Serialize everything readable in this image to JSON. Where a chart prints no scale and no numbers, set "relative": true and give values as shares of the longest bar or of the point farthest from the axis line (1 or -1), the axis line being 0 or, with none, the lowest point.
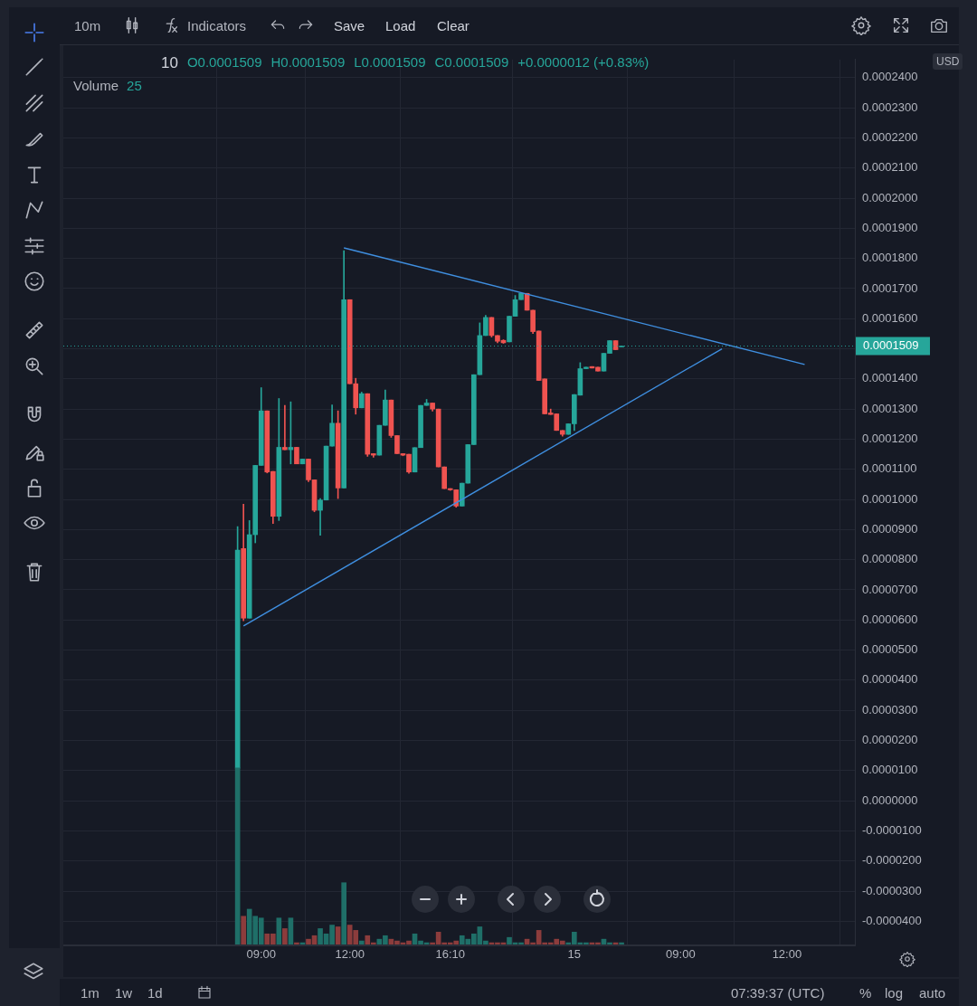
{
  "chart_data": [
    {
      "type": "candlestick",
      "annotations": [
        "10",
        "O0.0001509",
        "H0.0001509",
        "L0.0001509",
        "C0.0001509",
        "+0.0000012 (+0.83%)"
      ],
      "categories": [
        null,
        null,
        null,
        null,
        null,
        null,
        null,
        null,
        null,
        null,
        null,
        null,
        null,
        null,
        null,
        null,
        null,
        null,
        null,
        null,
        null,
        null,
        null,
        null,
        null,
        null,
        null,
        null,
        null,
        null,
        null,
        null,
        null,
        "09:00",
        null,
        null,
        null,
        null,
        null,
        null,
        null,
        null,
        null,
        null,
        null,
        null,
        null,
        null,
        "12:00",
        null,
        null,
        null,
        null,
        null,
        null,
        null,
        null,
        null,
        null,
        null,
        null,
        null,
        null,
        null,
        null,
        "16:10",
        null,
        null,
        null,
        null,
        null,
        null,
        null,
        null,
        null,
        null,
        null,
        null,
        null,
        null,
        null,
        null,
        null,
        null,
        null,
        null,
        "15",
        null,
        null,
        null,
        null,
        null,
        null,
        null,
        null,
        null,
        null,
        null,
        null,
        null,
        null,
        null,
        null,
        null,
        "09:00",
        null,
        null,
        null,
        null,
        null,
        null,
        null,
        null,
        null,
        null,
        null,
        null,
        null,
        null,
        null,
        null,
        null,
        "12:00",
        null,
        null,
        null,
        null,
        null,
        null,
        null,
        null,
        null,
        null,
        null
      ],
      "ohlc": [
        null,
        null,
        null,
        null,
        null,
        null,
        null,
        null,
        null,
        null,
        null,
        null,
        null,
        null,
        null,
        null,
        null,
        null,
        null,
        null,
        null,
        null,
        null,
        null,
        null,
        null,
        null,
        null,
        null,
        [
          1.08e-05,
          9.1e-05,
          1.08e-05,
          8.32e-05
        ],
        [
          8.37e-05,
          9.84e-05,
          5.97e-05,
          6.06e-05
        ],
        [
          6.06e-05,
          9.3e-05,
          6.06e-05,
          8.83e-05
        ],
        [
          8.83e-05,
          0.0001113,
          8.56e-05,
          0.0001113
        ],
        [
          0.0001113,
          0.0001371,
          0.0001113,
          0.0001294
        ],
        [
          0.0001294,
          0.0001294,
          0.0001088,
          0.0001091
        ],
        [
          0.0001093,
          0.0001093,
          9.2e-05,
          9.44e-05
        ],
        [
          9.44e-05,
          0.0001335,
          9.3e-05,
          0.0001173
        ],
        [
          0.0001173,
          0.0001312,
          0.0001165,
          0.0001165
        ],
        [
          0.0001165,
          0.0001324,
          0.0001118,
          0.0001173
        ],
        [
          0.0001173,
          0.0001173,
          0.0001118,
          0.0001118
        ],
        [
          0.0001118,
          0.0001134,
          0.0001118,
          0.0001134
        ],
        [
          0.0001134,
          0.0001134,
          0.0001059,
          0.0001065
        ],
        [
          0.0001065,
          0.0001065,
          9.59e-05,
          9.64e-05
        ],
        [
          9.64e-05,
          0.0001003,
          8.81e-05,
          9.98e-05
        ],
        [
          9.98e-05,
          0.0001177,
          9.98e-05,
          0.0001177
        ],
        [
          0.0001177,
          0.0001314,
          0.0001177,
          0.0001253
        ],
        [
          0.0001253,
          0.0001294,
          0.0001003,
          0.0001038
        ],
        [
          0.0001038,
          0.0001826,
          0.0001038,
          0.0001663
        ],
        [
          0.0001663,
          0.0001663,
          0.0001384,
          0.0001384
        ],
        [
          0.0001384,
          0.0001402,
          0.0001283,
          0.0001304
        ],
        [
          0.0001304,
          0.0001356,
          0.0001304,
          0.0001351
        ],
        [
          0.0001351,
          0.0001351,
          0.0001143,
          0.000115
        ],
        [
          0.0001152,
          0.0001152,
          0.000114,
          0.0001147
        ],
        [
          0.0001147,
          0.0001246,
          0.0001147,
          0.0001246
        ],
        [
          0.0001246,
          0.0001363,
          0.0001246,
          0.000133
        ],
        [
          0.000133,
          0.000133,
          0.0001206,
          0.0001212
        ],
        [
          0.0001212,
          0.0001212,
          0.0001152,
          0.0001152
        ],
        [
          0.0001152,
          0.0001152,
          0.0001145,
          0.0001147
        ],
        [
          0.000115,
          0.000115,
          0.0001087,
          0.0001091
        ],
        [
          0.0001091,
          0.0001172,
          0.0001091,
          0.0001172
        ],
        [
          0.0001172,
          0.0001312,
          0.0001172,
          0.0001312
        ],
        [
          0.0001312,
          0.0001332,
          0.0001312,
          0.000132
        ],
        [
          0.000132,
          0.000132,
          0.0001293,
          0.00013
        ],
        [
          0.00013,
          0.00013,
          0.0001108,
          0.0001108
        ],
        [
          0.0001108,
          0.0001108,
          0.0001036,
          0.0001036
        ],
        [
          0.0001036,
          0.0001036,
          0.000103,
          0.0001032
        ],
        [
          0.0001032,
          0.0001032,
          9.74e-05,
          9.78e-05
        ],
        [
          9.78e-05,
          0.0001054,
          9.78e-05,
          0.0001054
        ],
        [
          0.0001054,
          0.0001182,
          0.0001054,
          0.0001182
        ],
        [
          0.0001182,
          0.0001414,
          0.0001182,
          0.0001414
        ],
        [
          0.0001414,
          0.0001586,
          0.0001414,
          0.0001544
        ],
        [
          0.0001544,
          0.0001611,
          0.0001544,
          0.0001604
        ],
        [
          0.0001604,
          0.0001604,
          0.0001539,
          0.0001544
        ],
        [
          0.0001544,
          0.0001544,
          0.000152,
          0.0001525
        ],
        [
          0.0001528,
          0.000153,
          0.0001518,
          0.000152
        ],
        [
          0.0001523,
          0.0001608,
          0.0001523,
          0.0001608
        ],
        [
          0.0001608,
          0.0001677,
          0.0001608,
          0.0001663
        ],
        [
          0.0001663,
          0.0001684,
          0.0001663,
          0.0001684
        ],
        [
          0.0001684,
          0.0001684,
          0.0001628,
          0.0001628
        ],
        [
          0.0001628,
          0.0001628,
          0.0001551,
          0.0001557
        ],
        [
          0.0001559,
          0.0001559,
          0.0001395,
          0.0001395
        ],
        [
          0.00014,
          0.00014,
          0.0001284,
          0.0001284
        ],
        [
          0.0001287,
          0.00013,
          0.0001282,
          0.0001282
        ],
        [
          0.0001284,
          0.0001284,
          0.0001229,
          0.0001229
        ],
        [
          0.0001229,
          0.0001229,
          0.000121,
          0.0001216
        ],
        [
          0.0001216,
          0.0001251,
          0.0001216,
          0.0001251
        ],
        [
          0.0001251,
          0.0001348,
          0.0001229,
          0.0001348
        ],
        [
          0.0001346,
          0.0001454,
          0.0001346,
          0.0001434
        ],
        [
          0.0001434,
          0.0001439,
          0.0001434,
          0.0001439
        ],
        [
          0.0001441,
          0.0001441,
          0.0001436,
          0.0001436
        ],
        [
          0.0001439,
          0.0001439,
          0.0001426,
          0.0001426
        ],
        [
          0.0001426,
          0.0001485,
          0.0001426,
          0.0001485
        ],
        [
          0.0001485,
          0.0001527,
          0.0001485,
          0.0001527
        ],
        [
          0.0001527,
          0.0001527,
          0.0001497,
          0.0001497
        ],
        [
          0.0001509,
          0.0001509,
          0.0001509,
          0.0001509
        ],
        null,
        null,
        null,
        null,
        null,
        null,
        null,
        null,
        null,
        null,
        null,
        null,
        null,
        null,
        null,
        null,
        null,
        null,
        null,
        null,
        null,
        null,
        null,
        null,
        null,
        null,
        null,
        null,
        null,
        null,
        null,
        null,
        null,
        null,
        null,
        null,
        null,
        null,
        null
      ],
      "colors": [
        null,
        null,
        null,
        null,
        null,
        null,
        null,
        null,
        null,
        null,
        null,
        null,
        null,
        null,
        null,
        null,
        null,
        null,
        null,
        null,
        null,
        null,
        null,
        null,
        null,
        null,
        null,
        null,
        null,
        "#26a69a",
        "#ef5350",
        "#26a69a",
        "#26a69a",
        "#26a69a",
        "#ef5350",
        "#ef5350",
        "#26a69a",
        "#ef5350",
        "#26a69a",
        "#ef5350",
        "#26a69a",
        "#ef5350",
        "#ef5350",
        "#26a69a",
        "#26a69a",
        "#26a69a",
        "#ef5350",
        "#26a69a",
        "#ef5350",
        "#ef5350",
        "#26a69a",
        "#ef5350",
        "#ef5350",
        "#26a69a",
        "#26a69a",
        "#ef5350",
        "#ef5350",
        "#ef5350",
        "#ef5350",
        "#26a69a",
        "#26a69a",
        "#26a69a",
        "#ef5350",
        "#ef5350",
        "#ef5350",
        "#ef5350",
        "#ef5350",
        "#26a69a",
        "#26a69a",
        "#26a69a",
        "#26a69a",
        "#26a69a",
        "#ef5350",
        "#ef5350",
        "#ef5350",
        "#26a69a",
        "#26a69a",
        "#26a69a",
        "#ef5350",
        "#ef5350",
        "#ef5350",
        "#ef5350",
        "#ef5350",
        "#ef5350",
        "#ef5350",
        "#26a69a",
        "#26a69a",
        "#26a69a",
        "#26a69a",
        "#ef5350",
        "#ef5350",
        "#26a69a",
        "#26a69a",
        "#ef5350",
        "#26a69a",
        null,
        null,
        null,
        null,
        null,
        null,
        null,
        null,
        null,
        null,
        null,
        null,
        null,
        null,
        null,
        null,
        null,
        null,
        null,
        null,
        null,
        null,
        null,
        null,
        null,
        null,
        null,
        null,
        null,
        null,
        null,
        null,
        null,
        null,
        null,
        null,
        null,
        null,
        null
      ],
      "series": [
        {
          "type": "line",
          "color": "#3f8fe0",
          "values": [
            null,
            null,
            null,
            null,
            null,
            null,
            null,
            null,
            null,
            null,
            null,
            null,
            null,
            null,
            null,
            null,
            null,
            null,
            null,
            null,
            null,
            null,
            null,
            null,
            null,
            null,
            null,
            null,
            null,
            null,
            null,
            null,
            null,
            null,
            null,
            null,
            null,
            null,
            null,
            null,
            null,
            null,
            null,
            null,
            null,
            null,
            null,
            0.0001835,
            null,
            null,
            null,
            null,
            null,
            null,
            null,
            null,
            null,
            null,
            null,
            null,
            null,
            null,
            null,
            null,
            null,
            null,
            null,
            null,
            null,
            null,
            null,
            null,
            null,
            null,
            null,
            null,
            null,
            null,
            null,
            null,
            null,
            null,
            null,
            null,
            null,
            null,
            null,
            null,
            null,
            null,
            null,
            null,
            null,
            null,
            null,
            null,
            null,
            null,
            null,
            null,
            null,
            null,
            null,
            null,
            null,
            null,
            null,
            null,
            null,
            null,
            null,
            null,
            null,
            null,
            null,
            null,
            null,
            null,
            null,
            null,
            null,
            null,
            null,
            null,
            null,
            0.0001448,
            null,
            null,
            null,
            null,
            null,
            null,
            null,
            null
          ]
        },
        {
          "type": "line",
          "color": "#3f8fe0",
          "values": [
            null,
            null,
            null,
            null,
            null,
            null,
            null,
            null,
            null,
            null,
            null,
            null,
            null,
            null,
            null,
            null,
            null,
            null,
            null,
            null,
            null,
            null,
            null,
            null,
            null,
            null,
            null,
            null,
            null,
            null,
            5.8e-05,
            null,
            null,
            null,
            null,
            null,
            null,
            null,
            null,
            null,
            null,
            null,
            null,
            null,
            null,
            null,
            null,
            null,
            null,
            null,
            null,
            null,
            null,
            null,
            null,
            null,
            null,
            null,
            null,
            null,
            null,
            null,
            null,
            null,
            null,
            null,
            null,
            null,
            null,
            null,
            null,
            null,
            null,
            null,
            null,
            null,
            null,
            null,
            null,
            null,
            null,
            null,
            null,
            null,
            null,
            null,
            null,
            null,
            null,
            null,
            null,
            null,
            null,
            null,
            null,
            null,
            null,
            null,
            null,
            null,
            null,
            null,
            null,
            null,
            null,
            null,
            null,
            null,
            null,
            null,
            null,
            0.00015,
            null,
            null,
            null,
            null,
            null,
            null,
            null,
            null,
            null,
            null,
            null,
            null,
            null,
            null,
            null,
            null,
            null,
            null,
            null,
            null,
            null,
            null
          ]
        }
      ],
      "ylim": [
        -4.8e-05,
        0.000246
      ],
      "yticks": [
        {
          "value": -4e-05,
          "label": "-0.0000400"
        },
        {
          "value": -3e-05,
          "label": "-0.0000300"
        },
        {
          "value": -2e-05,
          "label": "-0.0000200"
        },
        {
          "value": -1e-05,
          "label": "-0.0000100"
        },
        {
          "value": 0,
          "label": "0.0000000"
        },
        {
          "value": 1e-05,
          "label": "0.0000100"
        },
        {
          "value": 2e-05,
          "label": "0.0000200"
        },
        {
          "value": 3e-05,
          "label": "0.0000300"
        },
        {
          "value": 4e-05,
          "label": "0.0000400"
        },
        {
          "value": 5e-05,
          "label": "0.0000500"
        },
        {
          "value": 6e-05,
          "label": "0.0000600"
        },
        {
          "value": 7e-05,
          "label": "0.0000700"
        },
        {
          "value": 8e-05,
          "label": "0.0000800"
        },
        {
          "value": 9e-05,
          "label": "0.0000900"
        },
        {
          "value": 0.0001,
          "label": "0.0001000"
        },
        {
          "value": 0.00011,
          "label": "0.0001100"
        },
        {
          "value": 0.00012,
          "label": "0.0001200"
        },
        {
          "value": 0.00013,
          "label": "0.0001300"
        },
        {
          "value": 0.00014,
          "label": "0.0001400"
        },
        {
          "value": 0.00015,
          "label": null
        },
        {
          "value": 0.00016,
          "label": "0.0001600"
        },
        {
          "value": 0.00017,
          "label": "0.0001700"
        },
        {
          "value": 0.00018,
          "label": "0.0001800"
        },
        {
          "value": 0.00019,
          "label": "0.0001900"
        },
        {
          "value": 0.0002,
          "label": "0.0002000"
        },
        {
          "value": 0.00021,
          "label": "0.0002100"
        },
        {
          "value": 0.00022,
          "label": "0.0002200"
        },
        {
          "value": 0.00023,
          "label": "0.0002300"
        },
        {
          "value": 0.00024,
          "label": "0.0002400"
        }
      ],
      "grid": true,
      "ref_lines": [
        {
          "axis": "y",
          "value": 0.0001509,
          "label": "0.0001509",
          "color": "#26a69a",
          "line_style": "dotted"
        }
      ]
    },
    {
      "type": "bar",
      "title": "Volume",
      "annotations": [
        "25"
      ],
      "relative": true,
      "categories": [
        null,
        null,
        null,
        null,
        null,
        null,
        null,
        null,
        null,
        null,
        null,
        null,
        null,
        null,
        null,
        null,
        null,
        null,
        null,
        null,
        null,
        null,
        null,
        null,
        null,
        null,
        null,
        null,
        null,
        null,
        null,
        null,
        null,
        null,
        null,
        null,
        null,
        null,
        null,
        null,
        null,
        null,
        null,
        null,
        null,
        null,
        null,
        null,
        null,
        null,
        null,
        null,
        null,
        null,
        null,
        null,
        null,
        null,
        null,
        null,
        null,
        null,
        null,
        null,
        null,
        null,
        null,
        null,
        null,
        null,
        null,
        null,
        null,
        null,
        null,
        null,
        null,
        null,
        null,
        null,
        null,
        null,
        null,
        null,
        null,
        null,
        null,
        null,
        null,
        null,
        null,
        null,
        null,
        null,
        null,
        null,
        null,
        null,
        null,
        null,
        null,
        null,
        null,
        null,
        null,
        null,
        null,
        null,
        null,
        null,
        null,
        null,
        null,
        null,
        null,
        null,
        null,
        null,
        null,
        null,
        null,
        null,
        null,
        null,
        null,
        null,
        null,
        null,
        null,
        null,
        null,
        null,
        null,
        null
      ],
      "values": [
        null,
        null,
        null,
        null,
        null,
        null,
        null,
        null,
        null,
        null,
        null,
        null,
        null,
        null,
        null,
        null,
        null,
        null,
        null,
        null,
        null,
        null,
        null,
        null,
        null,
        null,
        null,
        null,
        null,
        1,
        0.16,
        0.2,
        0.16,
        0.15,
        0.06,
        0.06,
        0.15,
        0.09,
        0.15,
        0.01,
        0.01,
        0.03,
        0.05,
        0.09,
        0.06,
        0.11,
        0.1,
        0.35,
        0.11,
        0.08,
        0.02,
        0.05,
        0.01,
        0.03,
        0.05,
        0.03,
        0.02,
        0.01,
        0.02,
        0.06,
        0.02,
        0.01,
        0.01,
        0.07,
        0.01,
        0.01,
        0.02,
        0.05,
        0.03,
        0.06,
        0.1,
        0.02,
        0.01,
        0.01,
        0.01,
        0.04,
        0.01,
        0.01,
        0.03,
        0.01,
        0.08,
        0.01,
        0.01,
        0.03,
        0.02,
        0.01,
        0.07,
        0.01,
        0.01,
        0.01,
        0.01,
        0.03,
        0.01,
        0.01,
        0.01,
        null,
        null,
        null,
        null,
        null,
        null,
        null,
        null,
        null,
        null,
        null,
        null,
        null,
        null,
        null,
        null,
        null,
        null,
        null,
        null,
        null,
        null,
        null,
        null,
        null,
        null,
        null,
        null,
        null,
        null,
        null,
        null,
        null,
        null,
        null,
        null,
        null,
        null,
        null
      ],
      "colors": [
        null,
        null,
        null,
        null,
        null,
        null,
        null,
        null,
        null,
        null,
        null,
        null,
        null,
        null,
        null,
        null,
        null,
        null,
        null,
        null,
        null,
        null,
        null,
        null,
        null,
        null,
        null,
        null,
        null,
        "#1f6f68",
        "#8c3c3c",
        "#1f6f68",
        "#1f6f68",
        "#1f6f68",
        "#8c3c3c",
        "#8c3c3c",
        "#1f6f68",
        "#8c3c3c",
        "#1f6f68",
        "#8c3c3c",
        "#1f6f68",
        "#8c3c3c",
        "#8c3c3c",
        "#1f6f68",
        "#1f6f68",
        "#1f6f68",
        "#8c3c3c",
        "#1f6f68",
        "#8c3c3c",
        "#8c3c3c",
        "#1f6f68",
        "#8c3c3c",
        "#8c3c3c",
        "#1f6f68",
        "#1f6f68",
        "#8c3c3c",
        "#8c3c3c",
        "#8c3c3c",
        "#8c3c3c",
        "#1f6f68",
        "#1f6f68",
        "#1f6f68",
        "#8c3c3c",
        "#8c3c3c",
        "#8c3c3c",
        "#8c3c3c",
        "#8c3c3c",
        "#1f6f68",
        "#1f6f68",
        "#1f6f68",
        "#1f6f68",
        "#1f6f68",
        "#8c3c3c",
        "#8c3c3c",
        "#8c3c3c",
        "#1f6f68",
        "#1f6f68",
        "#1f6f68",
        "#8c3c3c",
        "#8c3c3c",
        "#8c3c3c",
        "#8c3c3c",
        "#8c3c3c",
        "#8c3c3c",
        "#8c3c3c",
        "#1f6f68",
        "#1f6f68",
        "#1f6f68",
        "#1f6f68",
        "#8c3c3c",
        "#8c3c3c",
        "#1f6f68",
        "#1f6f68",
        "#8c3c3c",
        "#1f6f68",
        null,
        null,
        null,
        null,
        null,
        null,
        null,
        null,
        null,
        null,
        null,
        null,
        null,
        null,
        null,
        null,
        null,
        null,
        null,
        null,
        null,
        null,
        null,
        null,
        null,
        null,
        null,
        null,
        null,
        null,
        null,
        null,
        null,
        null,
        null,
        null,
        null,
        null,
        null
      ]
    },
    {
      "type": "other",
      "annotations": [
        "10m",
        "Indicators",
        "Save",
        "Load",
        "Clear",
        "USD",
        "1m",
        "1w",
        "1d",
        "07:39:37 (UTC)",
        "%",
        "log",
        "auto"
      ]
    }
  ]
}
